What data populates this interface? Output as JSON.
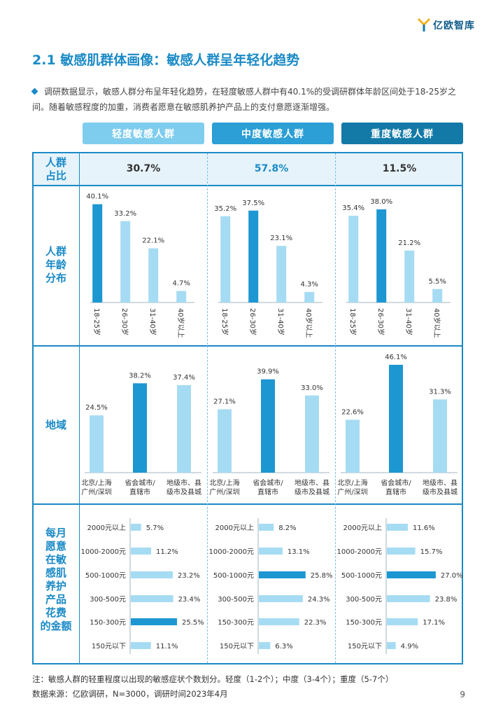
{
  "brand": {
    "name": "亿欧智库"
  },
  "title": "2.1 敏感肌群体画像：敏感人群呈年轻化趋势",
  "intro": "调研数据显示，敏感人群分布呈年轻化趋势，在轻度敏感人群中有40.1%的受调研群体年龄区间处于18-25岁之间。随着敏感程度的加重，消费者愿意在敏感肌养护产品上的支付意愿逐渐增强。",
  "segments": [
    {
      "label": "轻度敏感人群",
      "color": "#7fcdee"
    },
    {
      "label": "中度敏感人群",
      "color": "#2b9fd6"
    },
    {
      "label": "重度敏感人群",
      "color": "#137aa8"
    }
  ],
  "row_labels": {
    "share": "人群\n占比",
    "age": "人群\n年龄\n分布",
    "region": "地域",
    "spend": "每月\n愿意\n在敏\n感肌\n养护\n产品\n花费\n的金额"
  },
  "colors": {
    "light": "#a6dcf3",
    "dark": "#1c97d2",
    "accent": "#1a8ac6",
    "text_dark": "#137aa8"
  },
  "chart_data": [
    {
      "name": "人群占比",
      "type": "table",
      "categories": [
        "轻度敏感人群",
        "中度敏感人群",
        "重度敏感人群"
      ],
      "values": [
        "30.7%",
        "57.8%",
        "11.5%"
      ]
    },
    {
      "name": "人群年龄分布",
      "type": "bar",
      "categories": [
        "18-25岁",
        "26-30岁",
        "31-40岁",
        "40岁以上"
      ],
      "ylim": [
        0,
        50
      ],
      "series": [
        {
          "name": "轻度敏感人群",
          "values": [
            40.1,
            33.2,
            22.1,
            4.7
          ],
          "highlight": 0
        },
        {
          "name": "中度敏感人群",
          "values": [
            35.2,
            37.5,
            23.1,
            4.3
          ],
          "highlight": 1
        },
        {
          "name": "重度敏感人群",
          "values": [
            35.4,
            38.0,
            21.2,
            5.5
          ],
          "highlight": 1
        }
      ]
    },
    {
      "name": "地域",
      "type": "bar",
      "categories": [
        "北京/上海\n广州/深圳",
        "省会城市/\n直辖市",
        "地级市、县\n级市及县城"
      ],
      "ylim": [
        0,
        50
      ],
      "series": [
        {
          "name": "轻度敏感人群",
          "values": [
            24.5,
            38.2,
            37.4
          ],
          "highlight": 1
        },
        {
          "name": "中度敏感人群",
          "values": [
            27.1,
            39.9,
            33.0
          ],
          "highlight": 1
        },
        {
          "name": "重度敏感人群",
          "values": [
            22.6,
            46.1,
            31.3
          ],
          "highlight": 1
        }
      ]
    },
    {
      "name": "每月愿意在敏感肌养护产品花费的金额",
      "type": "bar",
      "orientation": "horizontal",
      "categories": [
        "2000元以上",
        "1000-2000元",
        "500-1000元",
        "300-500元",
        "150-300元",
        "150元以下"
      ],
      "xlim": [
        0,
        30
      ],
      "series": [
        {
          "name": "轻度敏感人群",
          "values": [
            5.7,
            11.2,
            23.2,
            23.4,
            25.5,
            11.1
          ],
          "highlight": 4
        },
        {
          "name": "中度敏感人群",
          "values": [
            8.2,
            13.1,
            25.8,
            24.3,
            22.3,
            6.3
          ],
          "highlight": 2
        },
        {
          "name": "重度敏感人群",
          "values": [
            11.6,
            15.7,
            27.0,
            23.8,
            17.1,
            4.9
          ],
          "highlight": 2
        }
      ]
    }
  ],
  "note": "注：敏感人群的轻重程度以出现的敏感症状个数划分。轻度（1-2个）；中度（3-4个）；重度（5-7个）",
  "source": "数据来源：亿欧调研，N=3000，调研时间2023年4月",
  "page_number": "9"
}
